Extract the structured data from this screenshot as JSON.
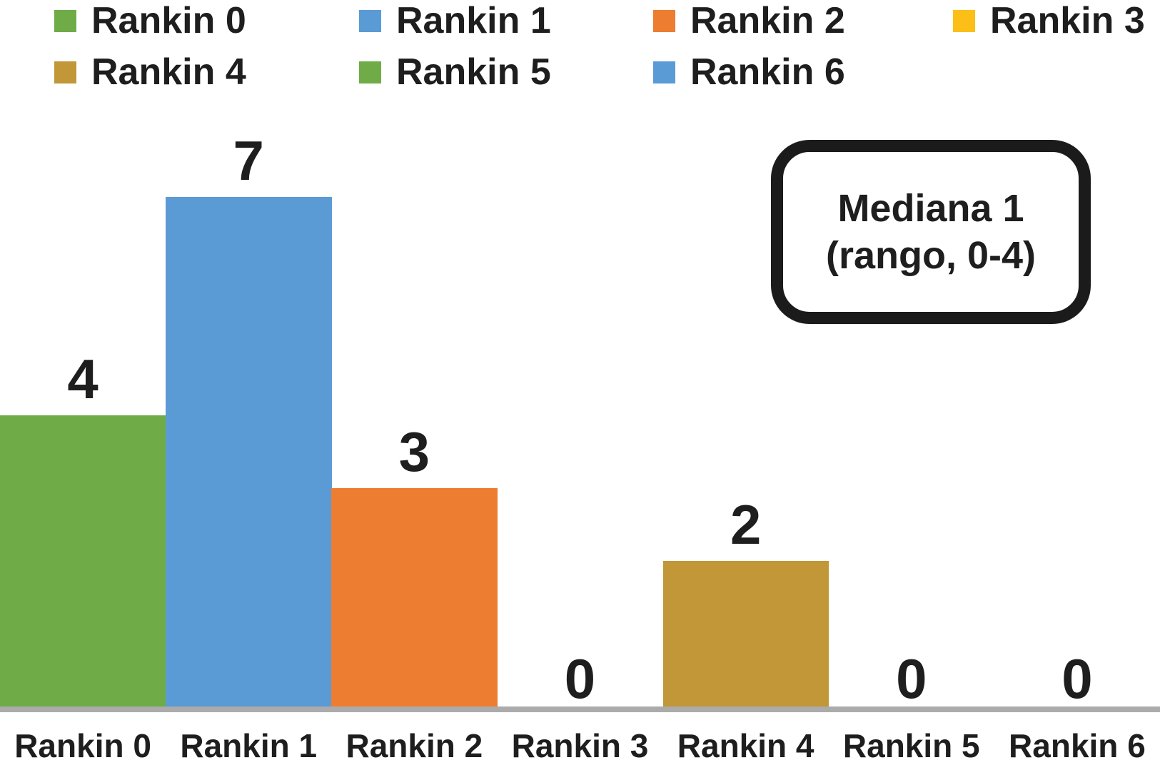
{
  "chart_data": {
    "type": "bar",
    "title": "",
    "xlabel": "",
    "ylabel": "",
    "categories": [
      "Rankin 0",
      "Rankin 1",
      "Rankin 2",
      "Rankin 3",
      "Rankin 4",
      "Rankin 5",
      "Rankin 6"
    ],
    "values": [
      4,
      7,
      3,
      0,
      2,
      0,
      0
    ],
    "data_labels": [
      "4",
      "7",
      "3",
      "0",
      "2",
      "0",
      "0"
    ],
    "bar_colors": [
      "#6FAC47",
      "#5B9BD5",
      "#ED7D31",
      "#FBBF17",
      "#C19738",
      "#6FAC47",
      "#5B9BD5"
    ],
    "ylim": [
      0,
      7
    ],
    "grid": false,
    "gap_width_percent": 0,
    "legend_position": "top",
    "legend": [
      {
        "label": "Rankin 0",
        "color": "#6FAC47"
      },
      {
        "label": "Rankin 1",
        "color": "#5B9BD5"
      },
      {
        "label": "Rankin 2",
        "color": "#ED7D31"
      },
      {
        "label": "Rankin 3",
        "color": "#FBBF17"
      },
      {
        "label": "Rankin 4",
        "color": "#C19738"
      },
      {
        "label": "Rankin 5",
        "color": "#6FAC47"
      },
      {
        "label": "Rankin 6",
        "color": "#5B9BD5"
      }
    ],
    "annotation": {
      "line1": "Mediana 1",
      "line2": "(rango, 0-4)"
    },
    "axis_line_color": "#ABABAB",
    "text_color": "#1E1E1E"
  }
}
